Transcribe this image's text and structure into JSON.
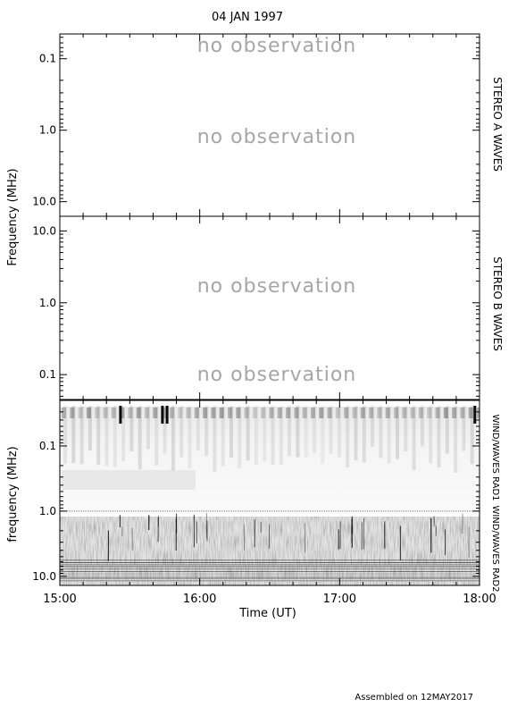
{
  "title": "04 JAN 1997",
  "footer": "Assembled on 12MAY2017",
  "no_observation_text": "no observation",
  "chart_data": [
    {
      "type": "heatmap",
      "panel": "STEREO A WAVES",
      "ylabel": "Frequency (MHz)",
      "yscale": "log",
      "yaxis_direction": "increasing-downward",
      "ylim": [
        0.045,
        16
      ],
      "yticks": [
        0.1,
        1.0,
        10.0
      ],
      "ytick_labels": [
        "0.1",
        "1.0",
        "10.0"
      ],
      "annotations": [
        "no observation",
        "no observation"
      ],
      "values": []
    },
    {
      "type": "heatmap",
      "panel": "STEREO B WAVES",
      "ylabel": "Frequency (MHz)",
      "yscale": "log",
      "yaxis_direction": "increasing-upward",
      "ylim": [
        0.045,
        16
      ],
      "yticks": [
        10.0,
        1.0,
        0.1
      ],
      "ytick_labels": [
        "10.0",
        "1.0",
        "0.1"
      ],
      "annotations": [
        "no observation",
        "no observation"
      ],
      "values": []
    },
    {
      "type": "heatmap",
      "panel": "WIND/WAVES",
      "sub_panels": [
        "WIND/WAVES RAD1",
        "WIND/WAVES RAD2"
      ],
      "ylabel": "frequency (MHz)",
      "xlabel": "Time (UT)",
      "yscale": "log",
      "yaxis_direction": "increasing-downward",
      "ylim": [
        0.02,
        13.8
      ],
      "yticks": [
        0.1,
        1.0,
        10.0
      ],
      "ytick_labels": [
        "0.1",
        "1.0",
        "10.0"
      ],
      "xlim": [
        "15:00",
        "18:00"
      ],
      "xticks": [
        "15:00",
        "16:00",
        "17:00",
        "18:00"
      ],
      "features": {
        "rad1_band_mhz": [
          0.02,
          1.0
        ],
        "rad2_band_mhz": [
          1.0,
          13.8
        ],
        "strong_bursts_ut": [
          "15:26",
          "15:44",
          "15:46",
          "17:58"
        ]
      }
    }
  ]
}
